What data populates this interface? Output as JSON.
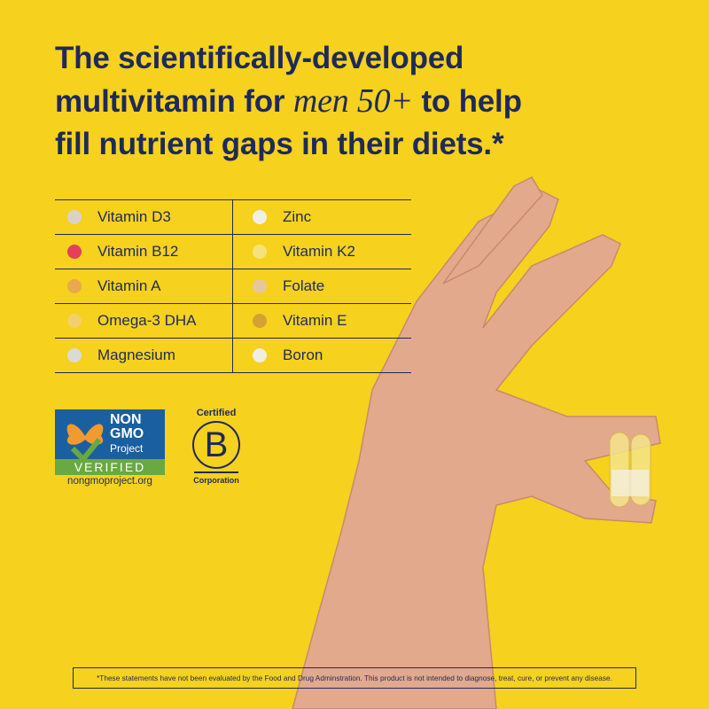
{
  "headline": {
    "line1": "The scientifically-developed",
    "line2_before": "multivitamin for",
    "line2_emphasis": "men 50+",
    "line2_after": "to help",
    "line3": "fill nutrient gaps in their diets.*"
  },
  "table": {
    "rows": [
      [
        {
          "name": "Vitamin D3",
          "color": "#d8d3c8"
        },
        {
          "name": "Zinc",
          "color": "#f3efe7"
        }
      ],
      [
        {
          "name": "Vitamin B12",
          "color": "#e2405c"
        },
        {
          "name": "Vitamin K2",
          "color": "#f7e27a"
        }
      ],
      [
        {
          "name": "Vitamin A",
          "color": "#e9a94c"
        },
        {
          "name": "Folate",
          "color": "#e6c79c"
        }
      ],
      [
        {
          "name": "Omega-3 DHA",
          "color": "#f3d06c"
        },
        {
          "name": "Vitamin E",
          "color": "#d6a133"
        }
      ],
      [
        {
          "name": "Magnesium",
          "color": "#dcdad6"
        },
        {
          "name": "Boron",
          "color": "#f1ece4"
        }
      ]
    ]
  },
  "badges": {
    "non_gmo": {
      "line1": "NON",
      "line2": "GMO",
      "line3": "Project",
      "verified": "VERIFIED",
      "url": "nongmoproject.org"
    },
    "b_corp": {
      "top": "Certified",
      "letter": "B",
      "bottom": "Corporation"
    }
  },
  "disclaimer": "*These statements have not been evaluated by the Food and Drug Adminstration. This product is not intended to diagnose, treat, cure, or prevent any disease."
}
